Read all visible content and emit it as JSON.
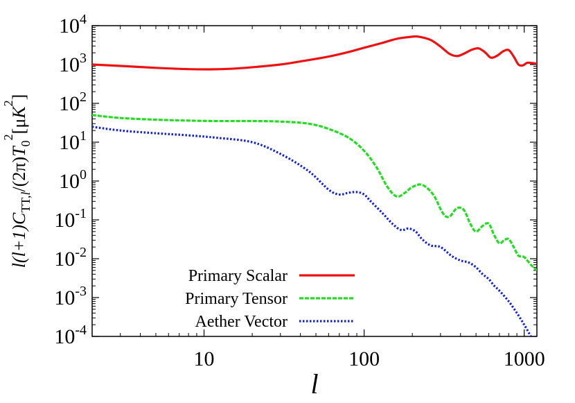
{
  "chart_data": {
    "type": "line",
    "title": "",
    "xlabel": "l",
    "ylabel": "l(l+1)C_TT,l/(2π)T_0^2[μK^2]",
    "x_scale": "log",
    "y_scale": "log",
    "xlim": [
      2,
      1200
    ],
    "ylim": [
      0.0001,
      10000
    ],
    "x_ticks": [
      {
        "value": 10,
        "label": "10"
      },
      {
        "value": 100,
        "label": "100"
      },
      {
        "value": 1000,
        "label": "1000"
      }
    ],
    "y_ticks": [
      {
        "value": 10000,
        "base": "10",
        "exp": "4"
      },
      {
        "value": 1000,
        "base": "10",
        "exp": "3"
      },
      {
        "value": 100,
        "base": "10",
        "exp": "2"
      },
      {
        "value": 10,
        "base": "10",
        "exp": "1"
      },
      {
        "value": 1,
        "base": "10",
        "exp": "0"
      },
      {
        "value": 0.1,
        "base": "10",
        "exp": "-1"
      },
      {
        "value": 0.01,
        "base": "10",
        "exp": "-2"
      },
      {
        "value": 0.001,
        "base": "10",
        "exp": "-3"
      },
      {
        "value": 0.0001,
        "base": "10",
        "exp": "-4"
      }
    ],
    "legend_position": "bottom-left",
    "grid": false,
    "series": [
      {
        "name": "Primary Scalar",
        "color": "#ee1111",
        "style": "solid",
        "x": [
          2,
          3,
          5,
          8,
          11,
          15,
          20,
          30,
          40,
          60,
          80,
          100,
          130,
          160,
          200,
          220,
          260,
          300,
          340,
          380,
          420,
          470,
          520,
          570,
          620,
          680,
          740,
          800,
          860,
          920,
          980,
          1040,
          1100,
          1200
        ],
        "y": [
          1000,
          920,
          820,
          760,
          750,
          780,
          850,
          1000,
          1200,
          1600,
          2100,
          2700,
          3600,
          4600,
          5200,
          5200,
          4300,
          2900,
          1900,
          1650,
          1900,
          2400,
          2600,
          2050,
          1500,
          1700,
          2200,
          2350,
          1600,
          1000,
          950,
          1100,
          1100,
          1050
        ]
      },
      {
        "name": "Primary Tensor",
        "color": "#22dd22",
        "style": "dashed",
        "x": [
          2,
          3,
          5,
          8,
          12,
          20,
          30,
          45,
          60,
          80,
          100,
          120,
          140,
          160,
          180,
          200,
          230,
          270,
          310,
          340,
          380,
          420,
          460,
          500,
          550,
          600,
          650,
          700,
          750,
          800,
          860,
          920,
          1000,
          1100,
          1200
        ],
        "y": [
          50,
          42,
          38,
          36,
          35,
          35,
          34,
          30,
          22,
          13,
          6,
          2.2,
          0.7,
          0.4,
          0.5,
          0.7,
          0.8,
          0.45,
          0.15,
          0.12,
          0.2,
          0.18,
          0.08,
          0.05,
          0.07,
          0.08,
          0.04,
          0.025,
          0.03,
          0.032,
          0.02,
          0.012,
          0.011,
          0.007,
          0.005
        ]
      },
      {
        "name": "Aether Vector",
        "color": "#1122dd",
        "style": "dotted",
        "x": [
          2,
          3,
          5,
          8,
          12,
          20,
          30,
          45,
          60,
          70,
          80,
          90,
          100,
          110,
          130,
          150,
          170,
          190,
          210,
          230,
          260,
          300,
          350,
          400,
          450,
          500,
          550,
          600,
          650,
          700,
          800,
          900,
          1000,
          1100
        ],
        "y": [
          25,
          20,
          17,
          15,
          13,
          10,
          5,
          1.8,
          0.6,
          0.45,
          0.5,
          0.52,
          0.45,
          0.3,
          0.15,
          0.08,
          0.055,
          0.06,
          0.05,
          0.032,
          0.022,
          0.02,
          0.012,
          0.009,
          0.008,
          0.006,
          0.004,
          0.003,
          0.002,
          0.0015,
          0.0008,
          0.0004,
          0.0002,
          0.0001
        ]
      }
    ]
  }
}
